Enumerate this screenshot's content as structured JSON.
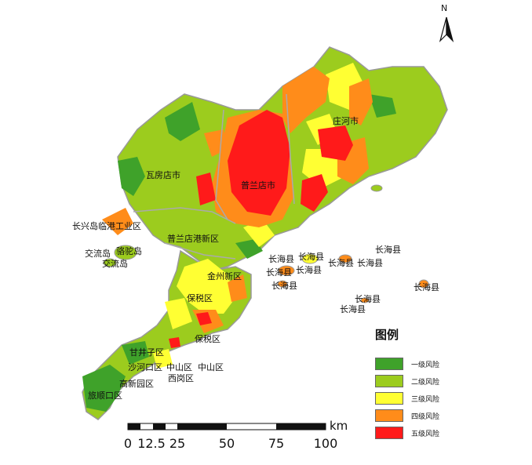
{
  "north_arrow": {
    "label": "N"
  },
  "legend": {
    "title": "图例",
    "items": [
      {
        "label": "一级风险",
        "color": "#3fa22a"
      },
      {
        "label": "二级风险",
        "color": "#9ccc1e"
      },
      {
        "label": "三级风险",
        "color": "#ffff33"
      },
      {
        "label": "四级风险",
        "color": "#ff8c1a"
      },
      {
        "label": "五级风险",
        "color": "#ff1a1a"
      }
    ]
  },
  "scale_bar": {
    "unit": "km",
    "ticks": [
      "0",
      "12.5",
      "25",
      "50",
      "75",
      "100"
    ]
  },
  "place_labels": [
    "庄河市",
    "瓦房店市",
    "普兰店市",
    "长兴岛临港工业区",
    "普兰店港新区",
    "交流岛",
    "骆驼岛",
    "交流岛",
    "金州新区",
    "保税区",
    "保税区",
    "长海县",
    "长海县",
    "长海县",
    "长海县",
    "长海县",
    "长海县",
    "长海县",
    "长海县",
    "长海县",
    "长海县",
    "长海县",
    "甘井子区",
    "沙河口区",
    "中山区",
    "中山区",
    "西岗区",
    "高新园区",
    "旅顺口区"
  ]
}
